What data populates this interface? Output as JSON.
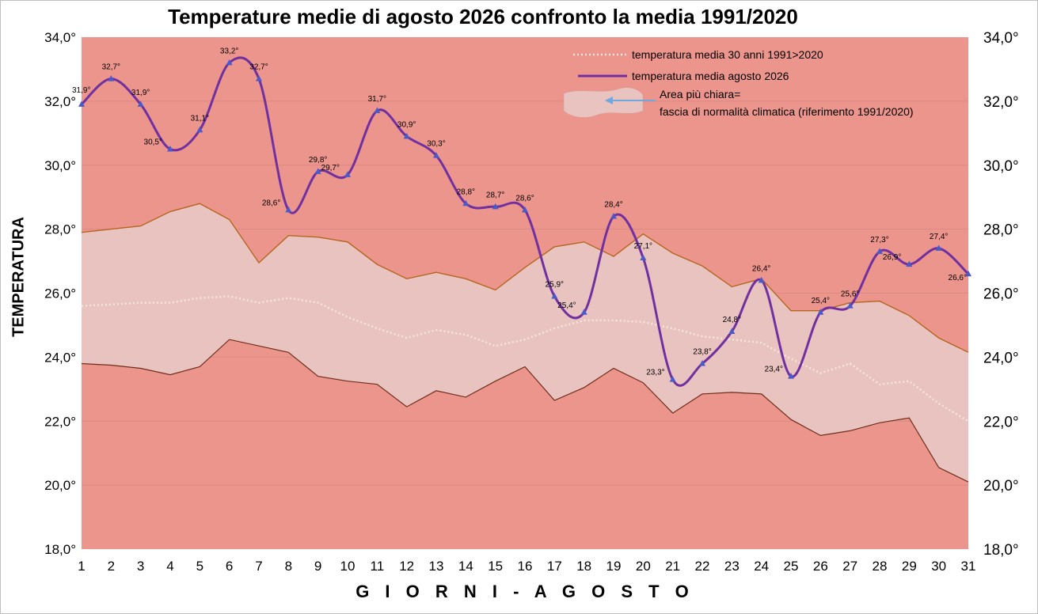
{
  "chart_data": {
    "type": "line",
    "title": "Temperature medie di agosto 2026 confronto la media 1991/2020",
    "xlabel": "G I O R N I  -  A G O S T O",
    "ylabel": "TEMPERATURA",
    "ylim": [
      18,
      34
    ],
    "y_ticks_left": [
      "18,0°",
      "20,0°",
      "22,0°",
      "24,0°",
      "26,0°",
      "28,0°",
      "30,0°",
      "32,0°",
      "34,0°"
    ],
    "y_ticks_right": [
      "18,0°",
      "20,0°",
      "22,0°",
      "24,0°",
      "26,0°",
      "28,0°",
      "30,0°",
      "32,0°",
      "34,0°"
    ],
    "categories": [
      "1",
      "2",
      "3",
      "4",
      "5",
      "6",
      "7",
      "8",
      "9",
      "10",
      "11",
      "12",
      "13",
      "14",
      "15",
      "16",
      "17",
      "18",
      "19",
      "20",
      "21",
      "22",
      "23",
      "24",
      "25",
      "26",
      "27",
      "28",
      "29",
      "30",
      "31"
    ],
    "background_color": "#ec958d",
    "band_color": "#e8c3c0",
    "series": [
      {
        "name": "temperatura media agosto 2026",
        "color": "#7030a0",
        "marker_color": "#4a5ac8",
        "values": [
          31.9,
          32.7,
          31.9,
          30.5,
          31.1,
          33.2,
          32.7,
          28.6,
          29.8,
          29.7,
          31.7,
          30.9,
          30.3,
          28.8,
          28.7,
          28.6,
          25.9,
          25.4,
          28.4,
          27.1,
          23.3,
          23.8,
          24.8,
          26.4,
          23.4,
          25.4,
          25.6,
          27.3,
          26.9,
          27.4,
          26.6
        ],
        "labels": [
          "31,9°",
          "32,7°",
          "31,9°",
          "30,5°",
          "31,1°",
          "33,2°",
          "32,7°",
          "28,6°",
          "29,8°",
          "29,7°",
          "31,7°",
          "30,9°",
          "30,3°",
          "28,8°",
          "28,7°",
          "28,6°",
          "25,9°",
          "25,4°",
          "28,4°",
          "27,1°",
          "23,3°",
          "23,8°",
          "24,8°",
          "26,4°",
          "23,4°",
          "25,4°",
          "25,6°",
          "27,3°",
          "26,9°",
          "27,4°",
          "26,6°"
        ]
      },
      {
        "name": "temperatura media 30 anni 1991>2020",
        "color": "#f5e6dc",
        "values": [
          25.6,
          25.65,
          25.7,
          25.7,
          25.85,
          25.9,
          25.7,
          25.85,
          25.7,
          25.25,
          24.9,
          24.6,
          24.85,
          24.7,
          24.35,
          24.55,
          24.9,
          25.15,
          25.15,
          25.1,
          24.9,
          24.65,
          24.55,
          24.45,
          23.95,
          23.5,
          23.8,
          23.15,
          23.25,
          22.55,
          22.0
        ]
      },
      {
        "name": "fascia di normalità climatica - limite superiore",
        "color": "#b5651d",
        "values": [
          27.9,
          28.0,
          28.1,
          28.55,
          28.8,
          28.3,
          26.95,
          27.8,
          27.75,
          27.6,
          26.9,
          26.45,
          26.65,
          26.45,
          26.1,
          26.8,
          27.45,
          27.6,
          27.15,
          27.85,
          27.25,
          26.85,
          26.2,
          26.45,
          25.45,
          25.45,
          25.7,
          25.75,
          25.3,
          24.6,
          24.15
        ]
      },
      {
        "name": "fascia di normalità climatica - limite inferiore",
        "color": "#6e2f1a",
        "values": [
          23.8,
          23.75,
          23.65,
          23.45,
          23.7,
          24.55,
          24.35,
          24.15,
          23.4,
          23.25,
          23.15,
          22.45,
          22.95,
          22.75,
          23.25,
          23.7,
          22.65,
          23.05,
          23.65,
          23.2,
          22.25,
          22.85,
          22.9,
          22.85,
          22.05,
          21.55,
          21.7,
          21.95,
          22.1,
          20.55,
          20.1
        ]
      }
    ],
    "legend": {
      "placement": "top-right",
      "items": [
        {
          "label": "temperatura media 30 anni 1991>2020",
          "style": "dotted"
        },
        {
          "label": "temperatura media agosto 2026",
          "style": "solid"
        }
      ],
      "note_line1": "Area più chiara=",
      "note_line2": "fascia di normalità climatica (riferimento 1991/2020)"
    }
  }
}
